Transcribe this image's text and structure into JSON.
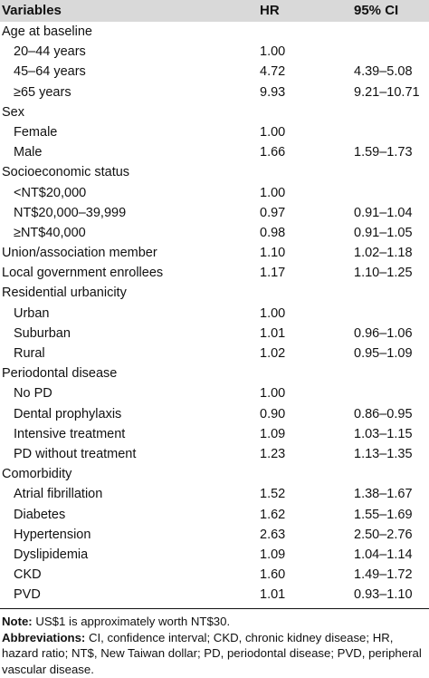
{
  "header": {
    "variables": "Variables",
    "hr": "HR",
    "ci": "95% CI"
  },
  "rows": [
    {
      "label": "Age at baseline",
      "hr": "",
      "ci": "",
      "indent": false
    },
    {
      "label": "20–44 years",
      "hr": "1.00",
      "ci": "",
      "indent": true
    },
    {
      "label": "45–64 years",
      "hr": "4.72",
      "ci": "4.39–5.08",
      "indent": true
    },
    {
      "label": "≥65 years",
      "hr": "9.93",
      "ci": "9.21–10.71",
      "indent": true
    },
    {
      "label": "Sex",
      "hr": "",
      "ci": "",
      "indent": false
    },
    {
      "label": "Female",
      "hr": "1.00",
      "ci": "",
      "indent": true
    },
    {
      "label": "Male",
      "hr": "1.66",
      "ci": "1.59–1.73",
      "indent": true
    },
    {
      "label": "Socioeconomic status",
      "hr": "",
      "ci": "",
      "indent": false
    },
    {
      "label": "<NT$20,000",
      "hr": "1.00",
      "ci": "",
      "indent": true
    },
    {
      "label": "NT$20,000–39,999",
      "hr": "0.97",
      "ci": "0.91–1.04",
      "indent": true
    },
    {
      "label": "≥NT$40,000",
      "hr": "0.98",
      "ci": "0.91–1.05",
      "indent": true
    },
    {
      "label": "Union/association member",
      "hr": "1.10",
      "ci": "1.02–1.18",
      "indent": false
    },
    {
      "label": "Local government enrollees",
      "hr": "1.17",
      "ci": "1.10–1.25",
      "indent": false
    },
    {
      "label": "Residential urbanicity",
      "hr": "",
      "ci": "",
      "indent": false
    },
    {
      "label": "Urban",
      "hr": "1.00",
      "ci": "",
      "indent": true
    },
    {
      "label": "Suburban",
      "hr": "1.01",
      "ci": "0.96–1.06",
      "indent": true
    },
    {
      "label": "Rural",
      "hr": "1.02",
      "ci": "0.95–1.09",
      "indent": true
    },
    {
      "label": "Periodontal disease",
      "hr": "",
      "ci": "",
      "indent": false
    },
    {
      "label": "No PD",
      "hr": "1.00",
      "ci": "",
      "indent": true
    },
    {
      "label": "Dental prophylaxis",
      "hr": "0.90",
      "ci": "0.86–0.95",
      "indent": true
    },
    {
      "label": "Intensive treatment",
      "hr": "1.09",
      "ci": "1.03–1.15",
      "indent": true
    },
    {
      "label": "PD without treatment",
      "hr": "1.23",
      "ci": "1.13–1.35",
      "indent": true
    },
    {
      "label": "Comorbidity",
      "hr": "",
      "ci": "",
      "indent": false
    },
    {
      "label": "Atrial fibrillation",
      "hr": "1.52",
      "ci": "1.38–1.67",
      "indent": true
    },
    {
      "label": "Diabetes",
      "hr": "1.62",
      "ci": "1.55–1.69",
      "indent": true
    },
    {
      "label": "Hypertension",
      "hr": "2.63",
      "ci": "2.50–2.76",
      "indent": true
    },
    {
      "label": "Dyslipidemia",
      "hr": "1.09",
      "ci": "1.04–1.14",
      "indent": true
    },
    {
      "label": "CKD",
      "hr": "1.60",
      "ci": "1.49–1.72",
      "indent": true
    },
    {
      "label": "PVD",
      "hr": "1.01",
      "ci": "0.93–1.10",
      "indent": true
    }
  ],
  "notes": {
    "note_label": "Note:",
    "note_text": " US$1 is approximately worth NT$30.",
    "abbrev_label": "Abbreviations:",
    "abbrev_text": " CI, confidence interval; CKD, chronic kidney disease; HR, hazard ratio; NT$, New Taiwan dollar; PD, periodontal disease; PVD, peripheral vascular disease."
  }
}
